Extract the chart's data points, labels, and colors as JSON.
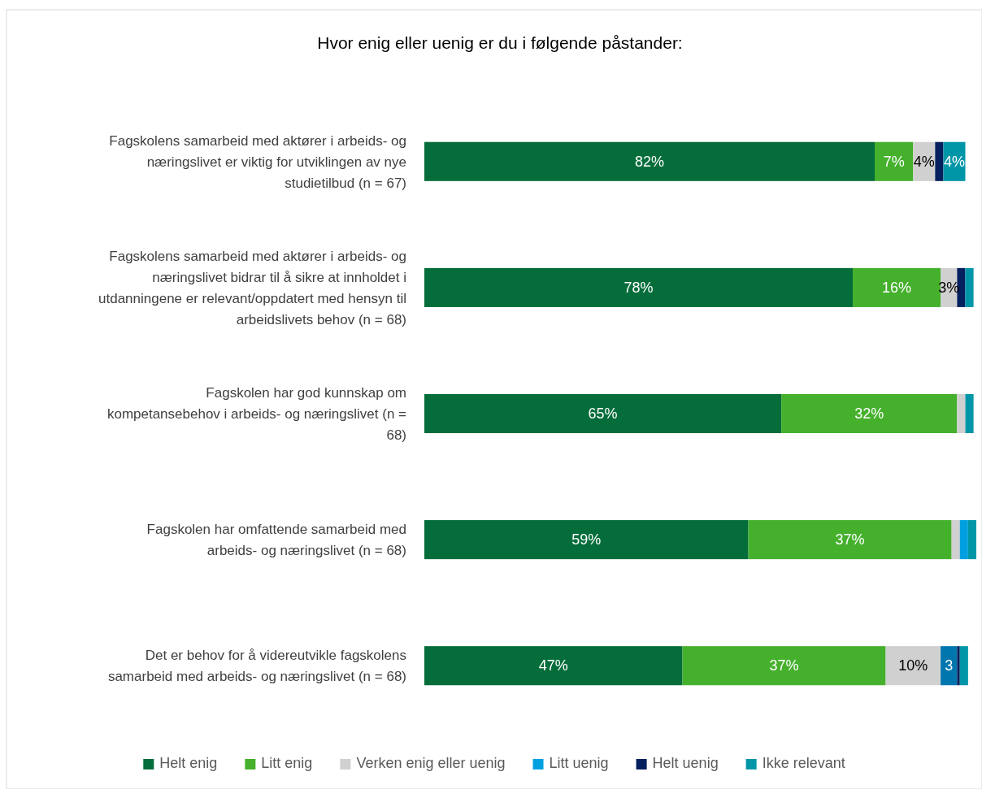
{
  "chart_data": {
    "type": "bar",
    "orientation": "horizontal",
    "stacked": true,
    "title": "Hvor enig eller uenig er du i følgende påstander:",
    "legend": "bottom",
    "categories": [
      "Fagskolens samarbeid med aktører i arbeids- og næringslivet er viktig for utviklingen av nye studietilbud (n = 67)",
      "Fagskolens samarbeid med aktører i arbeids- og næringslivet bidrar til å sikre at innholdet i utdanningene er relevant/oppdatert med hensyn til arbeidslivets behov (n = 68)",
      "Fagskolen har god kunnskap om kompetansebehov i arbeids- og næringslivet (n = 68)",
      "Fagskolen har omfattende samarbeid med arbeids- og næringslivet (n = 68)",
      "Det er behov for å videreutvikle fagskolens samarbeid med arbeids- og næringslivet (n = 68)"
    ],
    "series": [
      {
        "name": "Helt enig",
        "color": "#056d3a",
        "values": [
          82,
          78,
          65,
          59,
          47
        ],
        "value_labels": [
          "82%",
          "78%",
          "65%",
          "59%",
          "47%"
        ]
      },
      {
        "name": "Litt enig",
        "color": "#45b02c",
        "values": [
          7,
          16,
          32,
          37,
          37
        ],
        "value_labels": [
          "7%",
          "16%",
          "32%",
          "37%",
          "37%"
        ]
      },
      {
        "name": "Verken enig eller uenig",
        "color": "#d0d0d0",
        "values": [
          4,
          3,
          1.5,
          1.5,
          10
        ],
        "value_labels": [
          "4%",
          "3%",
          null,
          null,
          "10%"
        ]
      },
      {
        "name": "Litt uenig",
        "color": "#00a0e0",
        "colors": [
          null,
          null,
          null,
          "#00a0e0",
          "#0076ae"
        ],
        "values": [
          null,
          null,
          null,
          1.5,
          3
        ],
        "value_labels": [
          null,
          null,
          null,
          null,
          "3"
        ]
      },
      {
        "name": "Helt uenig",
        "color": "#04205e",
        "values": [
          1.5,
          1.5,
          null,
          null,
          0.5
        ],
        "value_labels": [
          null,
          null,
          null,
          null,
          null
        ]
      },
      {
        "name": "Ikke relevant",
        "color": "#0096a8",
        "values": [
          4,
          1.5,
          1.5,
          1.5,
          1.5
        ],
        "value_labels": [
          "4%",
          null,
          null,
          null,
          null
        ]
      }
    ]
  }
}
